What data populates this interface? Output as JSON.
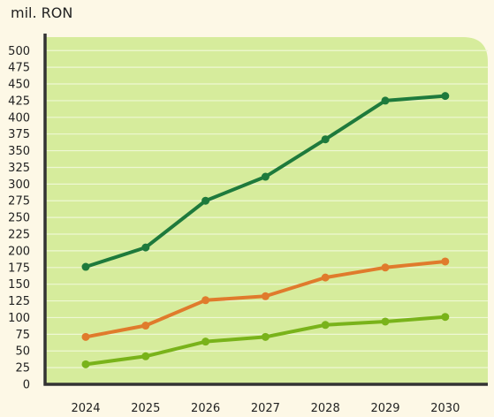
{
  "chart_data": {
    "type": "line",
    "ylabel": "mil. RON",
    "categories": [
      "2024",
      "2025",
      "2026",
      "2027",
      "2028",
      "2029",
      "2030"
    ],
    "y_ticks": [
      0,
      25,
      50,
      75,
      100,
      125,
      150,
      175,
      200,
      225,
      250,
      275,
      300,
      325,
      350,
      375,
      400,
      425,
      450,
      475,
      500
    ],
    "ylim": [
      0,
      520
    ],
    "grid": true,
    "legend": "none",
    "series": [
      {
        "color": "#1e7a3c",
        "values": [
          176,
          205,
          275,
          311,
          367,
          425,
          432
        ]
      },
      {
        "color": "#e07b2c",
        "values": [
          71,
          88,
          126,
          132,
          160,
          175,
          184
        ]
      },
      {
        "color": "#79b31a",
        "values": [
          30,
          42,
          64,
          71,
          89,
          94,
          101
        ]
      }
    ]
  },
  "colors": {
    "page_background": "#fdf8e6",
    "plot_background": "#d6ec9c",
    "gridline": "#eef7d3",
    "axis": "#333333"
  }
}
